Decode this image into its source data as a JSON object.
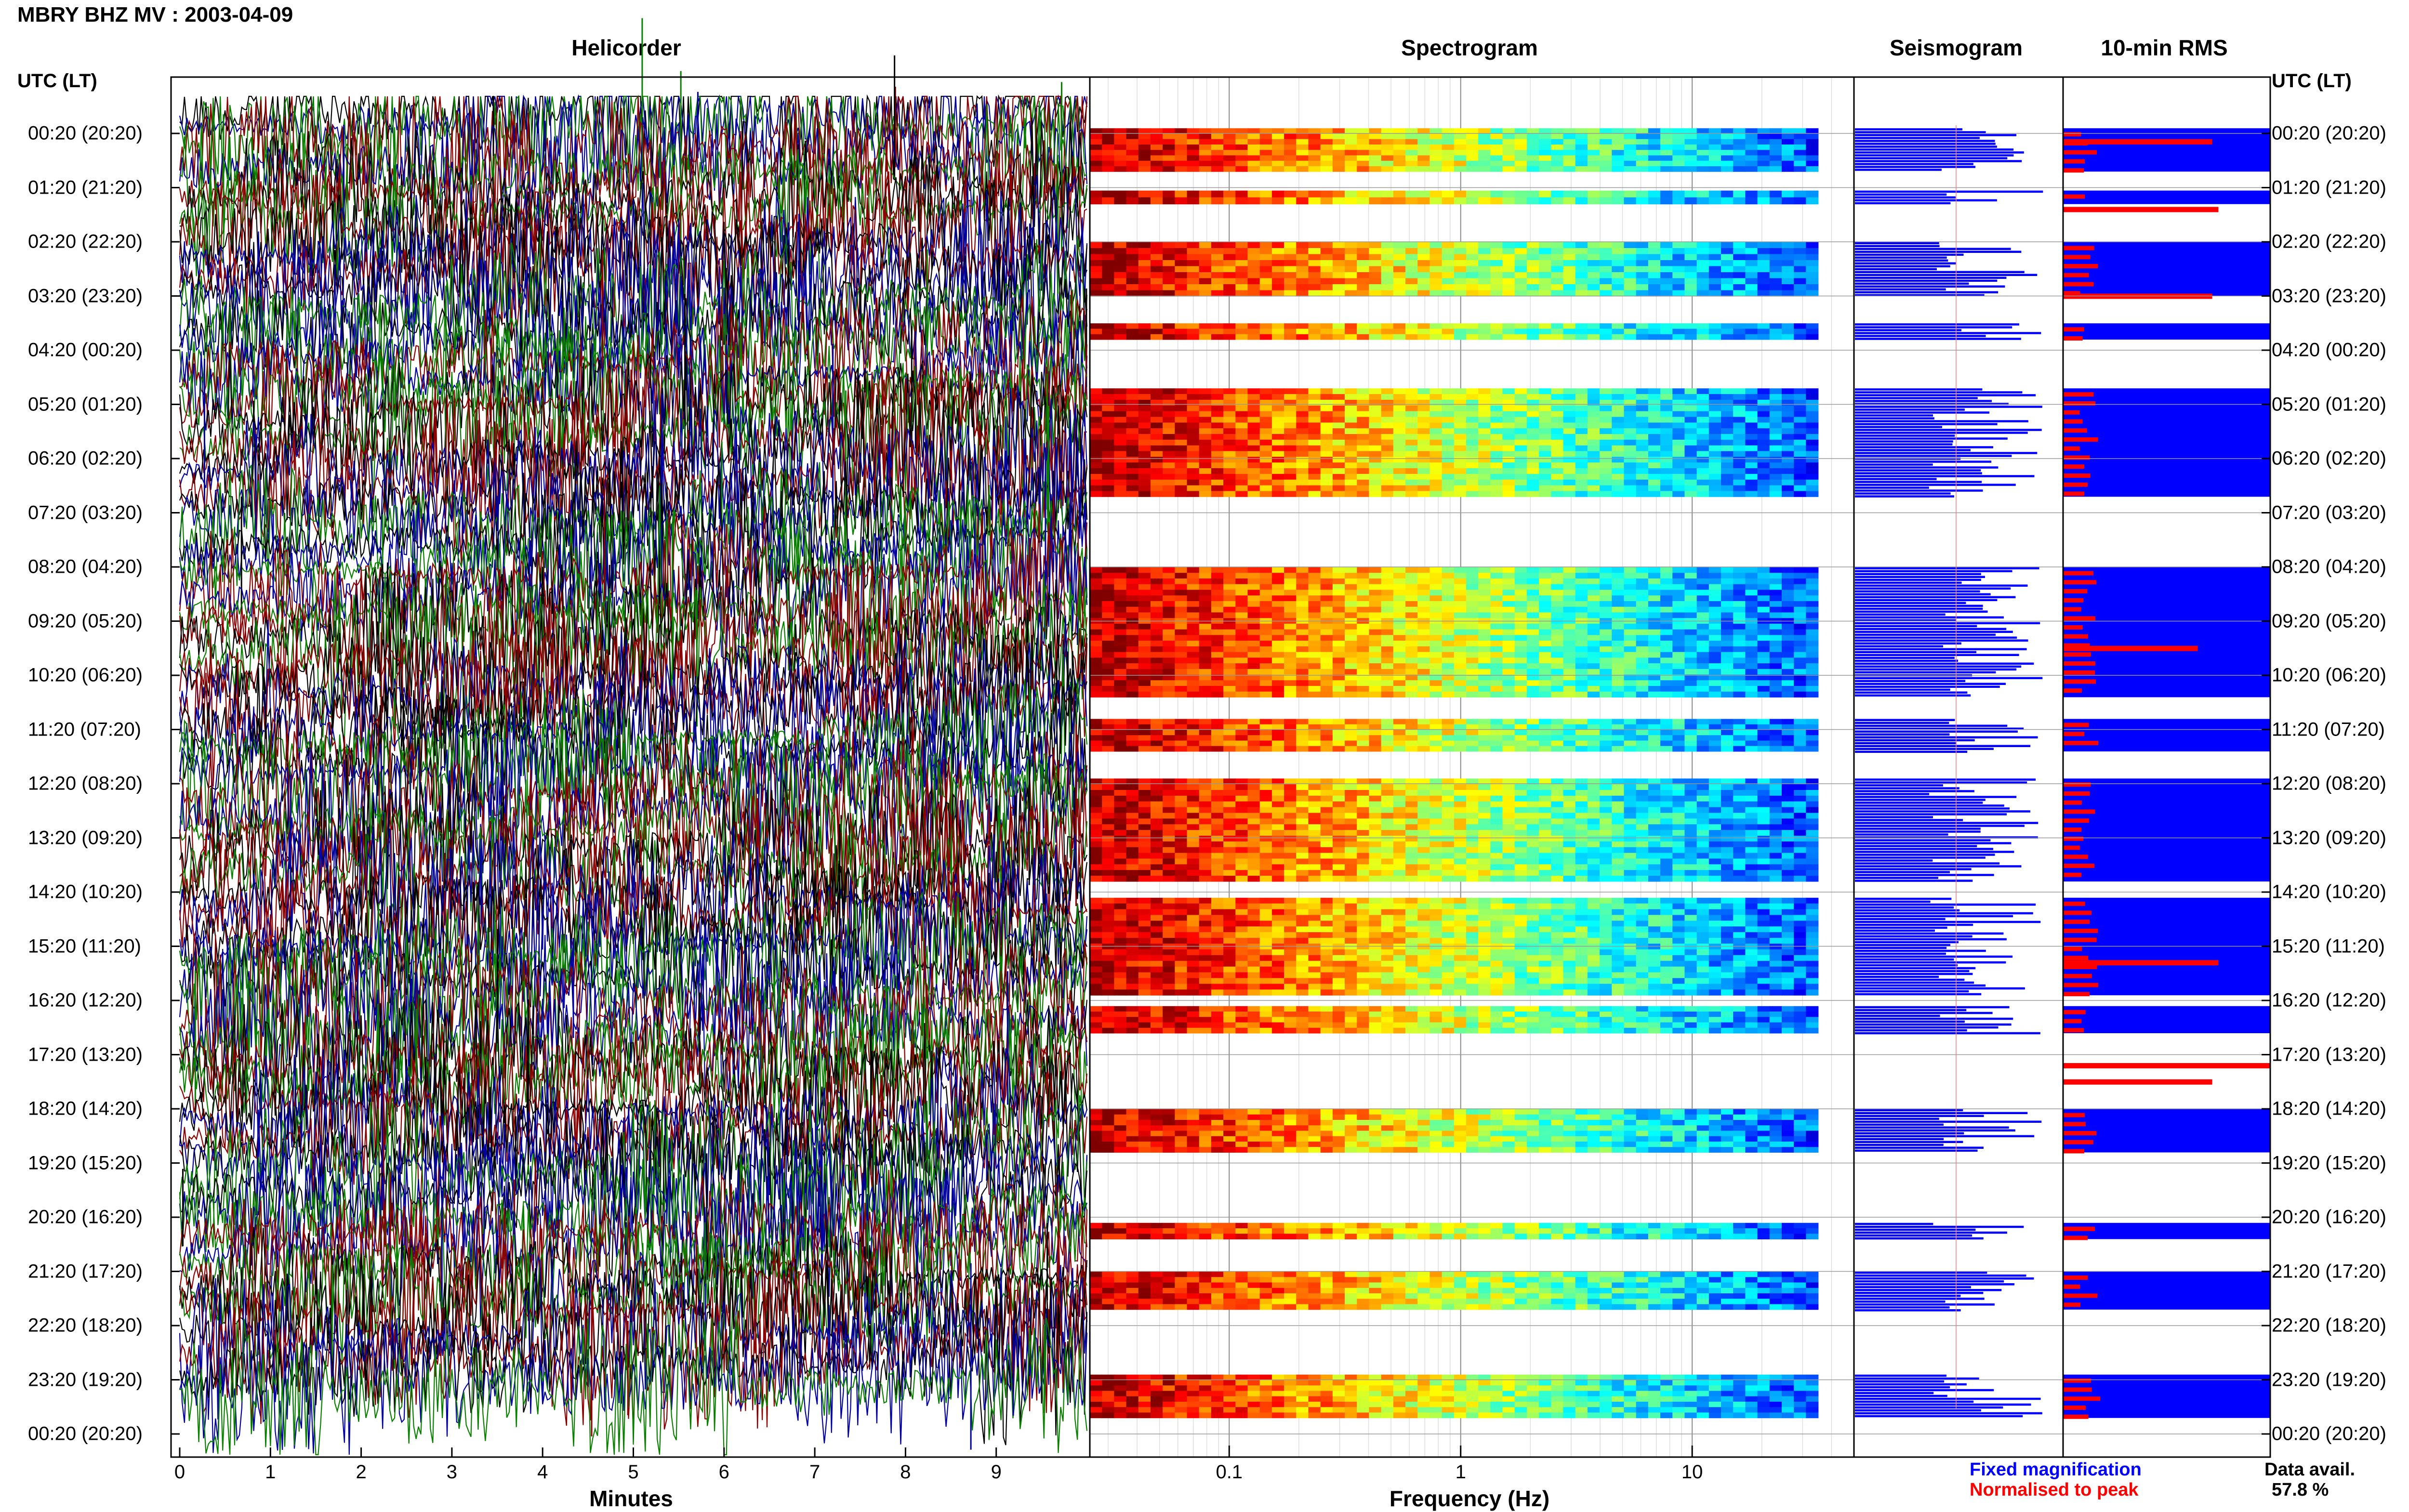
{
  "title": "MBRY BHZ MV : 2003-04-09",
  "panels": {
    "helicorder": "Helicorder",
    "spectrogram": "Spectrogram",
    "seismogram": "Seismogram",
    "rms": "10-min RMS"
  },
  "utc_header_left": "UTC (LT)",
  "utc_header_right": "UTC (LT)",
  "time_labels": [
    "00:20 (20:20)",
    "01:20 (21:20)",
    "02:20 (22:20)",
    "03:20 (23:20)",
    "04:20 (00:20)",
    "05:20 (01:20)",
    "06:20 (02:20)",
    "07:20 (03:20)",
    "08:20 (04:20)",
    "09:20 (05:20)",
    "10:20 (06:20)",
    "11:20 (07:20)",
    "12:20 (08:20)",
    "13:20 (09:20)",
    "14:20 (10:20)",
    "15:20 (11:20)",
    "16:20 (12:20)",
    "17:20 (13:20)",
    "18:20 (14:20)",
    "19:20 (15:20)",
    "20:20 (16:20)",
    "21:20 (17:20)",
    "22:20 (18:20)",
    "23:20 (19:20)",
    "00:20 (20:20)"
  ],
  "legend": {
    "fixed": "Fixed magnification",
    "normalised": "Normalised to peak",
    "fixed_color": "#0000ff",
    "normalised_color": "#ff0000"
  },
  "data_avail_label": "Data avail.",
  "data_avail_value": "57.8 %",
  "colors": {
    "trace_colors": [
      "#000000",
      "#0000a0",
      "#0a8000",
      "#8b0000"
    ],
    "seismogram": "#0000ff",
    "rms_bar": "#ff0000"
  },
  "chart_data": [
    {
      "type": "line",
      "name": "helicorder",
      "title": "Helicorder",
      "xlabel": "Minutes",
      "x_ticks": [
        "0",
        "1",
        "2",
        "3",
        "4",
        "5",
        "6",
        "7",
        "8",
        "9"
      ],
      "xlim": [
        0,
        10
      ],
      "rows": 24,
      "description_of_traces": "stacked 10-minute seismic traces cycling black, blue, green, red"
    },
    {
      "type": "heatmap",
      "name": "spectrogram",
      "title": "Spectrogram",
      "xlabel": "Frequency (Hz)",
      "x_scale": "log",
      "x_ticks": [
        "0.1",
        "1",
        "10"
      ],
      "xlim": [
        0.025,
        50
      ],
      "data_hour_blocks": [
        [
          0.1,
          0.9
        ],
        [
          1.25,
          1.5
        ],
        [
          2.2,
          3.2
        ],
        [
          3.7,
          4.0
        ],
        [
          4.9,
          6.9
        ],
        [
          8.2,
          10.6
        ],
        [
          11.0,
          11.6
        ],
        [
          12.1,
          14.0
        ],
        [
          14.3,
          16.1
        ],
        [
          16.3,
          16.8
        ],
        [
          18.2,
          19.0
        ],
        [
          20.3,
          20.6
        ],
        [
          21.2,
          21.9
        ],
        [
          23.1,
          23.9
        ]
      ]
    },
    {
      "type": "bar",
      "name": "seismogram",
      "title": "Seismogram",
      "orientation": "horizontal"
    },
    {
      "type": "bar",
      "name": "10-min RMS",
      "title": "10-min RMS",
      "orientation": "horizontal",
      "peaks": [
        {
          "hour": 0.15,
          "value": 0.72
        },
        {
          "hour": 1.4,
          "value": 0.75
        },
        {
          "hour": 3.0,
          "value": 0.72
        },
        {
          "hour": 9.5,
          "value": 0.65
        },
        {
          "hour": 15.3,
          "value": 0.75
        },
        {
          "hour": 17.2,
          "value": 1.0
        },
        {
          "hour": 17.5,
          "value": 0.72
        }
      ]
    }
  ]
}
